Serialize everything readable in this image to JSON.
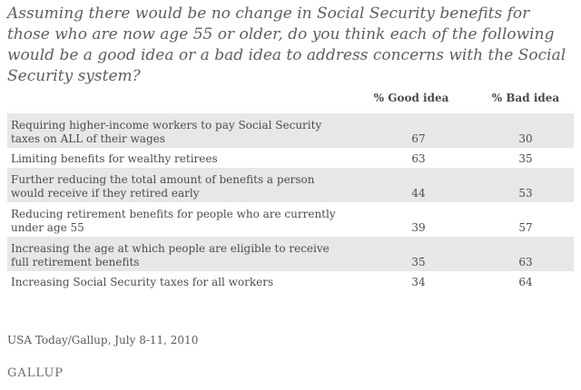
{
  "question": "Assuming there would be no change in Social Security benefits for those who are now age 55 or older, do you think each of the following would be a good idea or a bad idea to address concerns with the Social Security system?",
  "columns": {
    "good": "% Good idea",
    "bad": "% Bad idea"
  },
  "rows": [
    {
      "label": "Requiring higher-income workers to pay Social Security taxes on ALL of their wages",
      "good": "67",
      "bad": "30"
    },
    {
      "label": "Limiting benefits for wealthy retirees",
      "good": "63",
      "bad": "35"
    },
    {
      "label": "Further reducing the total amount of benefits a person would receive if they retired early",
      "good": "44",
      "bad": "53"
    },
    {
      "label": "Reducing retirement benefits for people who are currently under age 55",
      "good": "39",
      "bad": "57"
    },
    {
      "label": "Increasing the age at which people are eligible to receive full retirement benefits",
      "good": "35",
      "bad": "63"
    },
    {
      "label": "Increasing Social Security taxes for all workers",
      "good": "34",
      "bad": "64"
    }
  ],
  "source": "USA Today/Gallup, July 8-11, 2010",
  "logo": "GALLUP"
}
